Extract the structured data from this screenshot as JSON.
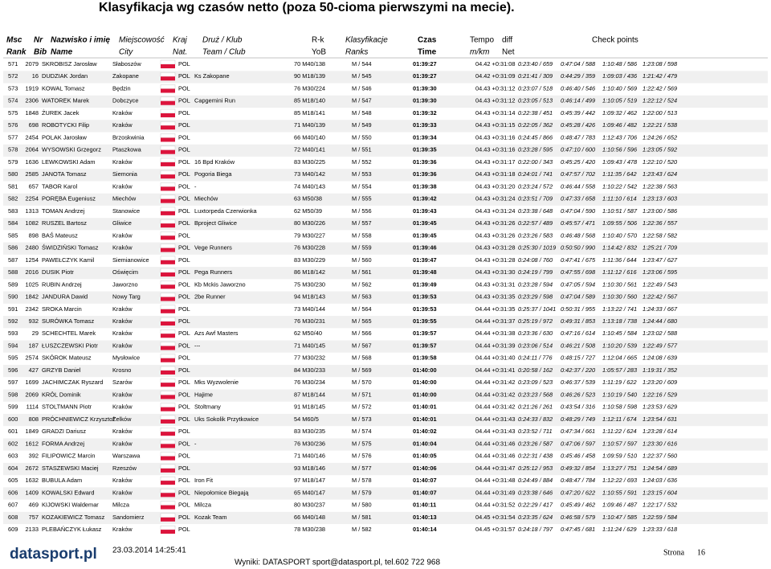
{
  "header": {
    "title": "Klasyfikacja wg czasów netto (poza 50-cioma pierwszymi na mecie).",
    "columns": [
      [
        "Msc",
        "Rank"
      ],
      [
        "Nr",
        "Bib"
      ],
      [
        "Nazwisko i imię",
        "Name"
      ],
      [
        "Miejscowość",
        "City"
      ],
      [
        "Kraj",
        "Nat."
      ],
      [
        "Druż / Klub",
        "Team / Club"
      ],
      [
        "R-k",
        "YoB"
      ],
      [
        "Klasyfikacje",
        "Ranks"
      ],
      [
        "Czas",
        "Time"
      ],
      [
        "Tempo",
        "m/km"
      ],
      [
        "diff",
        "Net"
      ]
    ],
    "checkpoints": "Check points"
  },
  "table": {
    "rows": [
      [
        "571",
        "2079",
        "SKROBISZ Jarosław",
        "Słaboszów",
        "POL",
        null,
        "70 M40/138",
        "M / 544",
        "01:39:27",
        "04.42 +0:31:08",
        "0:23:40 / 659",
        "0:47:04 / 588",
        "1:10:48 / 586",
        "1:23:08 / 598"
      ],
      [
        "572",
        "16",
        "DUDZIAK Jordan",
        "Zakopane",
        "POL",
        "Ks Zakopane",
        "90 M18/139",
        "M / 545",
        "01:39:27",
        "04.42 +0:31:09",
        "0:21:41 / 309",
        "0:44:29 / 359",
        "1:09:03 / 436",
        "1:21:42 / 479"
      ],
      [
        "573",
        "1919",
        "KOWAL Tomasz",
        "Będzin",
        "POL",
        null,
        "76 M30/224",
        "M / 546",
        "01:39:30",
        "04.43 +0:31:12",
        "0:23:07 / 518",
        "0:46:40 / 546",
        "1:10:40 / 569",
        "1:22:42 / 569"
      ],
      [
        "574",
        "2306",
        "WATOREK Marek",
        "Dobczyce",
        "POL",
        "Capgemini Run",
        "85 M18/140",
        "M / 547",
        "01:39:30",
        "04.43 +0:31:12",
        "0:23:05 / 513",
        "0:46:14 / 499",
        "1:10:05 / 519",
        "1:22:12 / 524"
      ],
      [
        "575",
        "1848",
        "ŻUREK Jacek",
        "Kraków",
        "POL",
        null,
        "85 M18/141",
        "M / 548",
        "01:39:32",
        "04.43 +0:31:14",
        "0:22:38 / 451",
        "0:45:39 / 442",
        "1:09:32 / 462",
        "1:22:00 / 513"
      ],
      [
        "576",
        "698",
        "ROBOTYCKI Filip",
        "Kraków",
        "POL",
        null,
        "71 M40/139",
        "M / 549",
        "01:39:33",
        "04.43 +0:31:15",
        "0:22:05 / 362",
        "0:45:28 / 426",
        "1:09:46 / 482",
        "1:22:21 / 538"
      ],
      [
        "577",
        "2454",
        "POLAK Jarosław",
        "Brzoskwinia",
        "POL",
        null,
        "66 M40/140",
        "M / 550",
        "01:39:34",
        "04.43 +0:31:16",
        "0:24:45 / 866",
        "0:48:47 / 783",
        "1:12:43 / 706",
        "1:24:26 / 652"
      ],
      [
        "578",
        "2064",
        "WYSOWSKI Grzegorz",
        "Ptaszkowa",
        "POL",
        null,
        "72 M40/141",
        "M / 551",
        "01:39:35",
        "04.43 +0:31:16",
        "0:23:28 / 595",
        "0:47:10 / 600",
        "1:10:56 / 596",
        "1:23:05 / 592"
      ],
      [
        "579",
        "1636",
        "LEWKOWSKI Adam",
        "Kraków",
        "POL",
        "16 Bpd Kraków",
        "83 M30/225",
        "M / 552",
        "01:39:36",
        "04.43 +0:31:17",
        "0:22:00 / 343",
        "0:45:25 / 420",
        "1:09:43 / 478",
        "1:22:10 / 520"
      ],
      [
        "580",
        "2585",
        "JANOTA Tomasz",
        "Siemonia",
        "POL",
        "Pogoria Biega",
        "73 M40/142",
        "M / 553",
        "01:39:36",
        "04.43 +0:31:18",
        "0:24:01 / 741",
        "0:47:57 / 702",
        "1:11:35 / 642",
        "1:23:43 / 624"
      ],
      [
        "581",
        "657",
        "TABOR Karol",
        "Kraków",
        "POL",
        "-",
        "74 M40/143",
        "M / 554",
        "01:39:38",
        "04.43 +0:31:20",
        "0:23:24 / 572",
        "0:46:44 / 558",
        "1:10:22 / 542",
        "1:22:38 / 563"
      ],
      [
        "582",
        "2254",
        "PORĘBA Eugeniusz",
        "Miechów",
        "POL",
        "Miechów",
        "63 M50/38",
        "M / 555",
        "01:39:42",
        "04.43 +0:31:24",
        "0:23:51 / 709",
        "0:47:33 / 658",
        "1:11:10 / 614",
        "1:23:13 / 603"
      ],
      [
        "583",
        "1313",
        "TOMAN Andrzej",
        "Stanowice",
        "POL",
        "Luxtorpeda Czerwionka",
        "62 M50/39",
        "M / 556",
        "01:39:43",
        "04.43 +0:31:24",
        "0:23:38 / 648",
        "0:47:04 / 590",
        "1:10:51 / 587",
        "1:23:00 / 586"
      ],
      [
        "584",
        "1082",
        "RUSZEL Bartosz",
        "Gliwice",
        "POL",
        "Bproject Gliwice",
        "80 M30/226",
        "M / 557",
        "01:39:45",
        "04.43 +0:31:26",
        "0:22:57 / 489",
        "0:45:57 / 471",
        "1:09:55 / 506",
        "1:22:36 / 557"
      ],
      [
        "585",
        "898",
        "BAŚ Mateusz",
        "Kraków",
        "POL",
        null,
        "79 M30/227",
        "M / 558",
        "01:39:45",
        "04.43 +0:31:26",
        "0:23:26 / 583",
        "0:46:48 / 568",
        "1:10:40 / 570",
        "1:22:58 / 582"
      ],
      [
        "586",
        "2480",
        "ŚWIDZIŃSKI Tomasz",
        "Kraków",
        "POL",
        "Vege Runners",
        "76 M30/228",
        "M / 559",
        "01:39:46",
        "04.43 +0:31:28",
        "0:25:30 / 1019",
        "0:50:50 / 990",
        "1:14:42 / 832",
        "1:25:21 / 709"
      ],
      [
        "587",
        "1254",
        "PAWEŁCZYK Kamil",
        "Siemianowice",
        "POL",
        null,
        "83 M30/229",
        "M / 560",
        "01:39:47",
        "04.43 +0:31:28",
        "0:24:08 / 760",
        "0:47:41 / 675",
        "1:11:36 / 644",
        "1:23:47 / 627"
      ],
      [
        "588",
        "2016",
        "DUSIK Piotr",
        "Oświęcim",
        "POL",
        "Pega Runners",
        "86 M18/142",
        "M / 561",
        "01:39:48",
        "04.43 +0:31:30",
        "0:24:19 / 799",
        "0:47:55 / 698",
        "1:11:12 / 616",
        "1:23:06 / 595"
      ],
      [
        "589",
        "1025",
        "RUBIN Andrzej",
        "Jaworzno",
        "POL",
        "Kb Mckis Jaworzno",
        "75 M30/230",
        "M / 562",
        "01:39:49",
        "04.43 +0:31:31",
        "0:23:28 / 594",
        "0:47:05 / 594",
        "1:10:30 / 561",
        "1:22:49 / 543"
      ],
      [
        "590",
        "1842",
        "JANDURA Dawid",
        "Nowy Targ",
        "POL",
        "2be Runner",
        "94 M18/143",
        "M / 563",
        "01:39:53",
        "04.43 +0:31:35",
        "0:23:29 / 598",
        "0:47:04 / 589",
        "1:10:30 / 560",
        "1:22:42 / 567"
      ],
      [
        "591",
        "2342",
        "SROKA Marcin",
        "Kraków",
        "POL",
        null,
        "73 M40/144",
        "M / 564",
        "01:39:53",
        "04.44 +0:31:35",
        "0:25:37 / 1041",
        "0:50:31 / 955",
        "1:13:22 / 741",
        "1:24:33 / 667"
      ],
      [
        "592",
        "932",
        "SURÓWKA Tomasz",
        "Kraków",
        "POL",
        null,
        "76 M30/231",
        "M / 565",
        "01:39:55",
        "04.44 +0:31:37",
        "0:25:19 / 972",
        "0:49:31 / 853",
        "1:13:18 / 738",
        "1:24:44 / 680"
      ],
      [
        "593",
        "29",
        "SCHECHTEL Marek",
        "Kraków",
        "POL",
        "Azs Awf Masters",
        "62 M50/40",
        "M / 566",
        "01:39:57",
        "04.44 +0:31:38",
        "0:23:36 / 630",
        "0:47:16 / 614",
        "1:10:45 / 584",
        "1:23:02 / 588"
      ],
      [
        "594",
        "187",
        "ŁUSZCZEWSKI Piotr",
        "Kraków",
        "POL",
        "---",
        "71 M40/145",
        "M / 567",
        "01:39:57",
        "04.44 +0:31:39",
        "0:23:06 / 514",
        "0:46:21 / 508",
        "1:10:20 / 539",
        "1:22:49 / 577"
      ],
      [
        "595",
        "2574",
        "SKÓROK Mateusz",
        "Mysłowice",
        "POL",
        null,
        "77 M30/232",
        "M / 568",
        "01:39:58",
        "04.44 +0:31:40",
        "0:24:11 / 776",
        "0:48:15 / 727",
        "1:12:04 / 665",
        "1:24:08 / 639"
      ],
      [
        "596",
        "427",
        "GRZYB Daniel",
        "Krosno",
        "POL",
        null,
        "84 M30/233",
        "M / 569",
        "01:40:00",
        "04.44 +0:31:41",
        "0:20:58 / 162",
        "0:42:37 / 220",
        "1:05:57 / 283",
        "1:19:31 / 352"
      ],
      [
        "597",
        "1699",
        "JACHIMCZAK Ryszard",
        "Szarów",
        "POL",
        "Mks Wyzwolenie",
        "76 M30/234",
        "M / 570",
        "01:40:00",
        "04.44 +0:31:42",
        "0:23:09 / 523",
        "0:46:37 / 539",
        "1:11:19 / 622",
        "1:23:20 / 609"
      ],
      [
        "598",
        "2069",
        "KRÓL Dominik",
        "Kraków",
        "POL",
        "Hajime",
        "87 M18/144",
        "M / 571",
        "01:40:00",
        "04.44 +0:31:42",
        "0:23:23 / 568",
        "0:46:26 / 523",
        "1:10:19 / 540",
        "1:22:16 / 529"
      ],
      [
        "599",
        "1114",
        "STOLTMANN Piotr",
        "Kraków",
        "POL",
        "Stoltmany",
        "91 M18/145",
        "M / 572",
        "01:40:01",
        "04.44 +0:31:42",
        "0:21:26 / 261",
        "0:43:54 / 316",
        "1:10:58 / 598",
        "1:23:53 / 629"
      ],
      [
        "600",
        "808",
        "PRÓCHNIEWICZ Krzysztof",
        "Zelków",
        "POL",
        "Uks Sokolik Przytkowice",
        "54 M60/5",
        "M / 573",
        "01:40:01",
        "04.44 +0:31:43",
        "0:24:33 / 832",
        "0:48:29 / 749",
        "1:12:11 / 674",
        "1:23:54 / 631"
      ],
      [
        "601",
        "1849",
        "GRADZI Dariusz",
        "Kraków",
        "POL",
        null,
        "83 M30/235",
        "M / 574",
        "01:40:02",
        "04.44 +0:31:43",
        "0:23:52 / 711",
        "0:47:34 / 661",
        "1:11:22 / 624",
        "1:23:28 / 614"
      ],
      [
        "602",
        "1612",
        "FORMA Andrzej",
        "Kraków",
        "POL",
        "-",
        "76 M30/236",
        "M / 575",
        "01:40:04",
        "04.44 +0:31:46",
        "0:23:26 / 587",
        "0:47:06 / 597",
        "1:10:57 / 597",
        "1:23:30 / 616"
      ],
      [
        "603",
        "392",
        "FILIPOWICZ Marcin",
        "Warszawa",
        "POL",
        null,
        "71 M40/146",
        "M / 576",
        "01:40:05",
        "04.44 +0:31:46",
        "0:22:31 / 438",
        "0:45:46 / 458",
        "1:09:59 / 510",
        "1:22:37 / 560"
      ],
      [
        "604",
        "2672",
        "STASZEWSKI Maciej",
        "Rzeszów",
        "POL",
        null,
        "93 M18/146",
        "M / 577",
        "01:40:06",
        "04.44 +0:31:47",
        "0:25:12 / 953",
        "0:49:32 / 854",
        "1:13:27 / 751",
        "1:24:54 / 689"
      ],
      [
        "605",
        "1632",
        "BUBULA Adam",
        "Kraków",
        "POL",
        "Iron Fit",
        "97 M18/147",
        "M / 578",
        "01:40:07",
        "04.44 +0:31:48",
        "0:24:49 / 884",
        "0:48:47 / 784",
        "1:12:22 / 693",
        "1:24:03 / 636"
      ],
      [
        "606",
        "1409",
        "KOWALSKI Edward",
        "Kraków",
        "POL",
        "Niepołomice Biegają",
        "65 M40/147",
        "M / 579",
        "01:40:07",
        "04.44 +0:31:49",
        "0:23:38 / 646",
        "0:47:20 / 622",
        "1:10:55 / 591",
        "1:23:15 / 604"
      ],
      [
        "607",
        "469",
        "KIJOWSKI Waldemar",
        "Milcza",
        "POL",
        "Milcza",
        "80 M30/237",
        "M / 580",
        "01:40:11",
        "04.44 +0:31:52",
        "0:22:29 / 417",
        "0:45:49 / 462",
        "1:09:46 / 487",
        "1:22:17 / 532"
      ],
      [
        "608",
        "757",
        "KOZAKIEWICZ Tomasz",
        "Sandomierz",
        "POL",
        "Kozak Team",
        "66 M40/148",
        "M / 581",
        "01:40:13",
        "04.45 +0:31:54",
        "0:23:35 / 624",
        "0:46:58 / 579",
        "1:10:47 / 585",
        "1:22:59 / 584"
      ],
      [
        "609",
        "2133",
        "PLEBAŃCZYK Łukasz",
        "Kraków",
        "POL",
        null,
        "78 M30/238",
        "M / 582",
        "01:40:14",
        "04.45 +0:31:57",
        "0:24:18 / 797",
        "0:47:45 / 681",
        "1:11:24 / 629",
        "1:23:33 / 618"
      ]
    ]
  },
  "footer": {
    "logo": "datasport.pl",
    "timestamp": "23.03.2014 14:25:41",
    "contact": "Wyniki: DATASPORT sport@datasport.pl, tel.602 722 968",
    "page_label": "Strona",
    "page_number": "16"
  }
}
